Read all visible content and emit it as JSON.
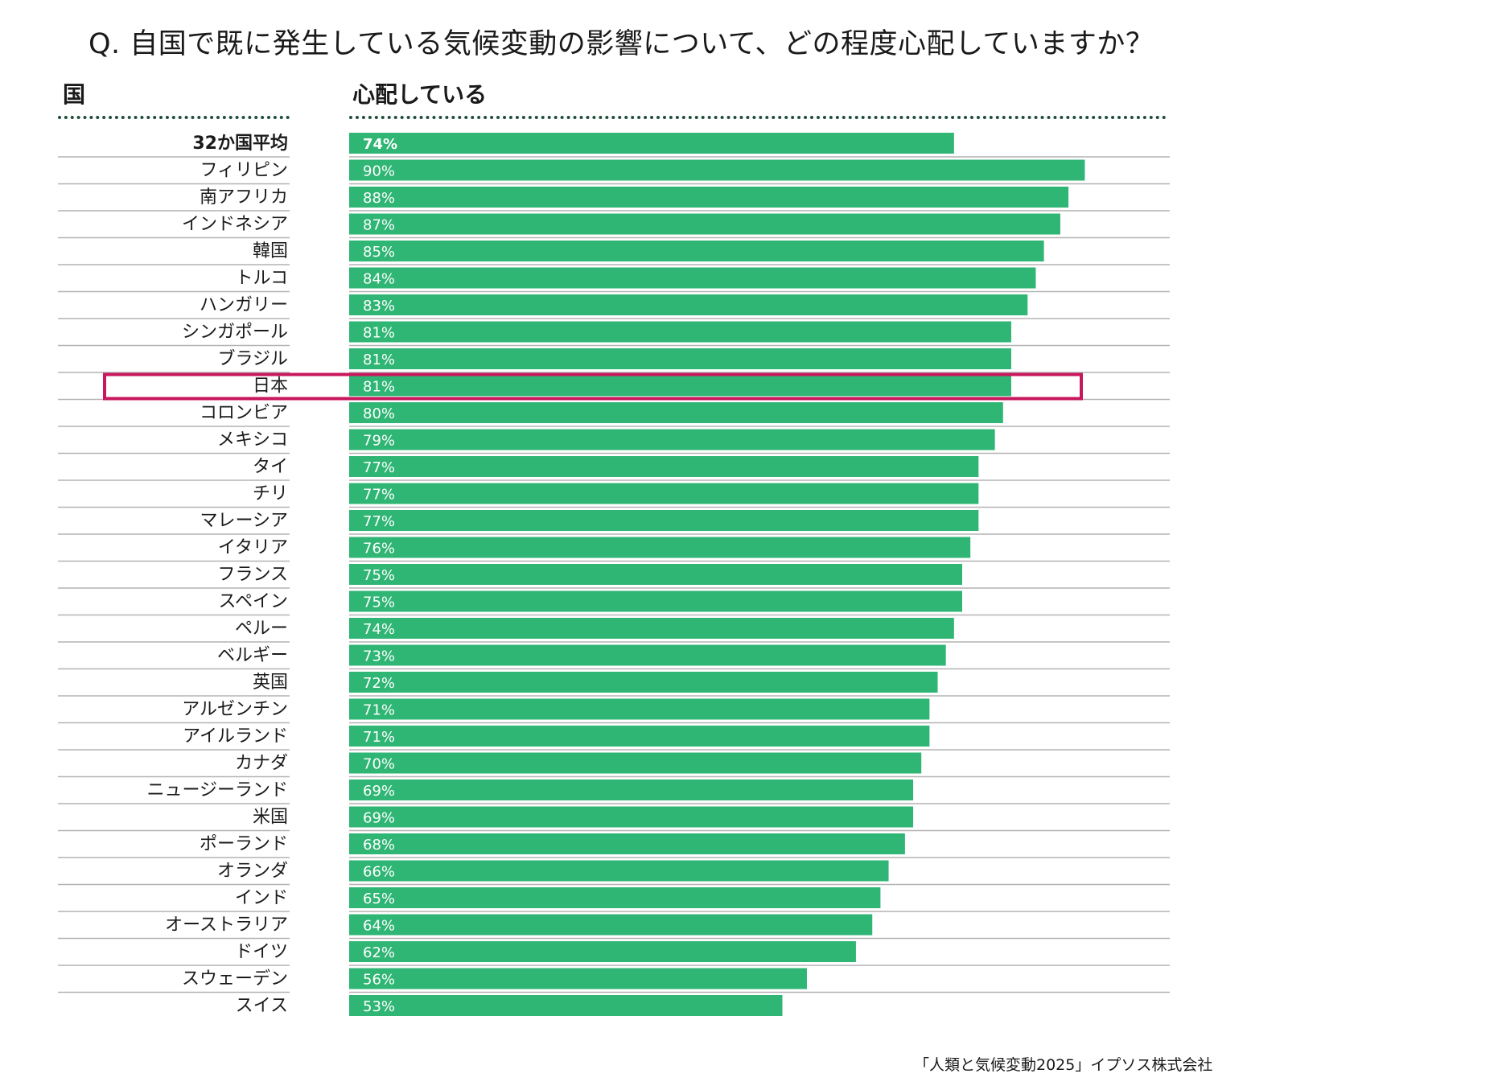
{
  "question": "Q. 自国で既に発生している気候変動の影響について、どの程度心配していますか？",
  "header": {
    "country_label": "国",
    "value_label": "心配している"
  },
  "source": "「人類と気候変動2025」イプソス株式会社",
  "colors": {
    "bar": "#2fb574",
    "highlight": "#c8175d",
    "rule": "#b3b3b3",
    "dots": "#1f4f3a"
  },
  "highlighted_category": "日本",
  "chart_data": {
    "type": "bar",
    "orientation": "horizontal",
    "title": "Q. 自国で既に発生している気候変動の影響について、どの程度心配していますか？",
    "xlabel": "心配している",
    "ylabel": "国",
    "xlim": [
      0,
      100
    ],
    "value_suffix": "%",
    "categories": [
      "32か国平均",
      "フィリピン",
      "南アフリカ",
      "インドネシア",
      "韓国",
      "トルコ",
      "ハンガリー",
      "シンガポール",
      "ブラジル",
      "日本",
      "コロンビア",
      "メキシコ",
      "タイ",
      "チリ",
      "マレーシア",
      "イタリア",
      "フランス",
      "スペイン",
      "ペルー",
      "ベルギー",
      "英国",
      "アルゼンチン",
      "アイルランド",
      "カナダ",
      "ニュージーランド",
      "米国",
      "ポーランド",
      "オランダ",
      "インド",
      "オーストラリア",
      "ドイツ",
      "スウェーデン",
      "スイス"
    ],
    "values": [
      74,
      90,
      88,
      87,
      85,
      84,
      83,
      81,
      81,
      81,
      80,
      79,
      77,
      77,
      77,
      76,
      75,
      75,
      74,
      73,
      72,
      71,
      71,
      70,
      69,
      69,
      68,
      66,
      65,
      64,
      62,
      56,
      53
    ],
    "bold_categories": [
      "32か国平均"
    ]
  }
}
